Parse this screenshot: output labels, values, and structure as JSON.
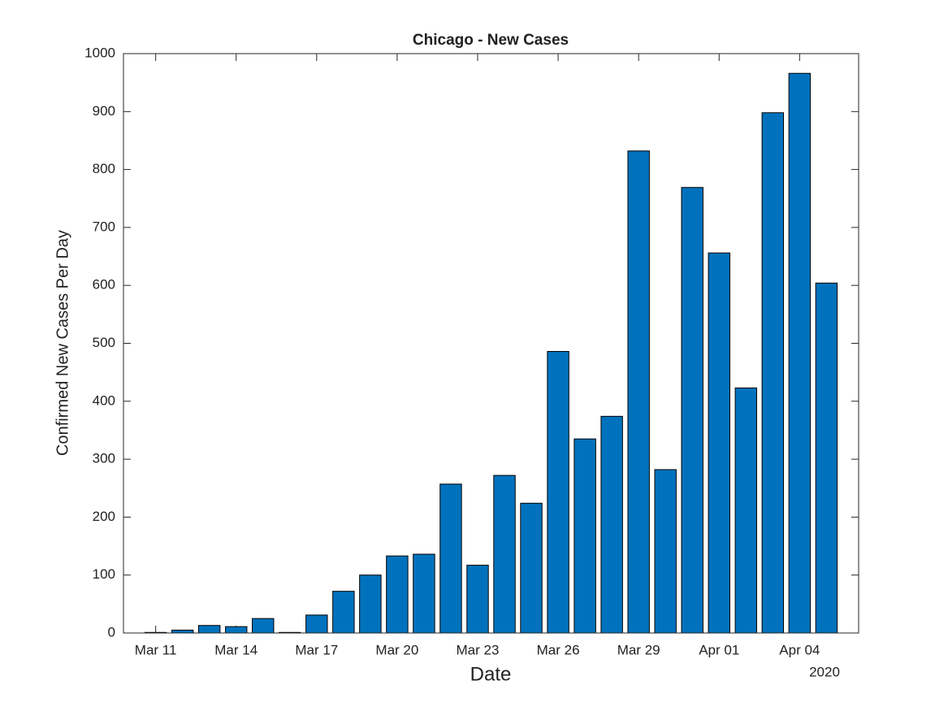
{
  "chart_data": {
    "type": "bar",
    "title": "Chicago - New Cases",
    "x_label": "Date",
    "y_label": "Confirmed New Cases Per Day",
    "year_label": "2020",
    "categories": [
      "Mar 11",
      null,
      null,
      "Mar 14",
      null,
      null,
      "Mar 17",
      null,
      null,
      "Mar 20",
      null,
      null,
      "Mar 23",
      null,
      null,
      "Mar 26",
      null,
      null,
      "Mar 29",
      null,
      null,
      "Apr 01",
      null,
      null,
      "Apr 04",
      null
    ],
    "values": [
      1,
      5,
      13,
      11,
      25,
      1,
      31,
      72,
      100,
      133,
      136,
      257,
      117,
      272,
      224,
      486,
      335,
      374,
      832,
      282,
      769,
      656,
      423,
      898,
      966,
      604
    ],
    "color": "#0072bd",
    "ylim": [
      0,
      1000
    ],
    "yticks": [
      0,
      100,
      200,
      300,
      400,
      500,
      600,
      700,
      800,
      900,
      1000
    ],
    "grid": false
  }
}
